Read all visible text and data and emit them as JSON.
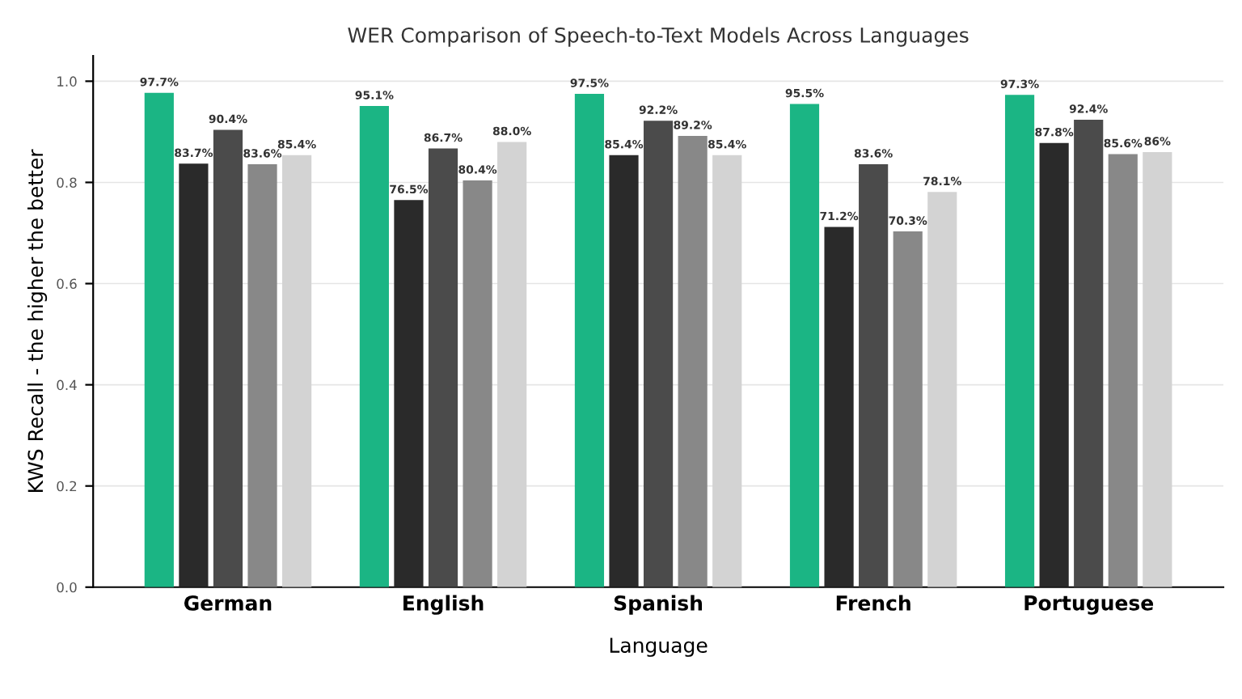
{
  "chart_data": {
    "type": "bar",
    "title": "WER Comparison of Speech-to-Text Models Across Languages",
    "xlabel": "Language",
    "ylabel": "KWS Recall - the higher the better",
    "categories": [
      "German",
      "English",
      "Spanish",
      "French",
      "Portuguese"
    ],
    "series": [
      {
        "color": "#1bb584",
        "values": [
          0.977,
          0.951,
          0.975,
          0.955,
          0.973
        ],
        "value_labels": [
          "97.7%",
          "95.1%",
          "97.5%",
          "95.5%",
          "97.3%"
        ]
      },
      {
        "color": "#2a2a2a",
        "values": [
          0.837,
          0.765,
          0.854,
          0.712,
          0.878
        ],
        "value_labels": [
          "83.7%",
          "76.5%",
          "85.4%",
          "71.2%",
          "87.8%"
        ]
      },
      {
        "color": "#4b4b4b",
        "values": [
          0.904,
          0.867,
          0.922,
          0.836,
          0.924
        ],
        "value_labels": [
          "90.4%",
          "86.7%",
          "92.2%",
          "83.6%",
          "92.4%"
        ]
      },
      {
        "color": "#888888",
        "values": [
          0.836,
          0.804,
          0.892,
          0.703,
          0.856
        ],
        "value_labels": [
          "83.6%",
          "80.4%",
          "89.2%",
          "70.3%",
          "85.6%"
        ]
      },
      {
        "color": "#d3d3d3",
        "values": [
          0.854,
          0.88,
          0.854,
          0.781,
          0.86
        ],
        "value_labels": [
          "85.4%",
          "88.0%",
          "85.4%",
          "78.1%",
          "86%"
        ]
      }
    ],
    "ylim": [
      0,
      1.05
    ],
    "yticks": [
      {
        "value": 0,
        "label": "0.0"
      },
      {
        "value": 0.2,
        "label": "0.2"
      },
      {
        "value": 0.4,
        "label": "0.4"
      },
      {
        "value": 0.6,
        "label": "0.6"
      },
      {
        "value": 0.8,
        "label": "0.8"
      },
      {
        "value": 1.0,
        "label": "1.0"
      }
    ],
    "grid": "y"
  }
}
